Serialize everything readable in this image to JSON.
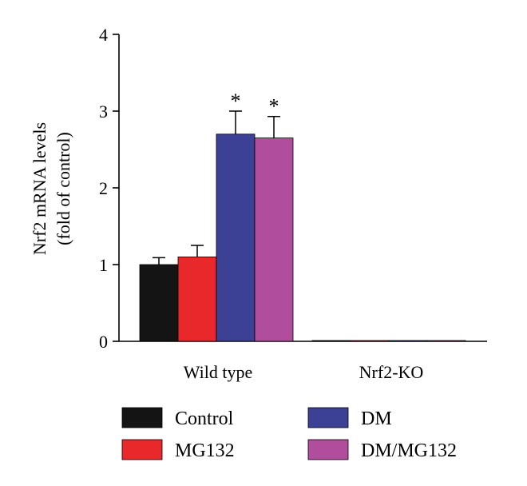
{
  "chart_data": {
    "type": "bar",
    "categories": [
      "Wild type",
      "Nrf2-KO"
    ],
    "ylabel_line1": "Nrf2 mRNA levels",
    "ylabel_line2": "(fold of control)",
    "ylim": [
      0,
      4
    ],
    "yticks": [
      "0",
      "1",
      "2",
      "3",
      "4"
    ],
    "grid": false,
    "legend_position": "bottom",
    "significance_marker": "*",
    "series": [
      {
        "name": "Control",
        "color": "#141414",
        "values": [
          1.0,
          0.01
        ],
        "errors": [
          0.09,
          0.0
        ],
        "significant": [
          false,
          false
        ]
      },
      {
        "name": "MG132",
        "color": "#e8282a",
        "values": [
          1.1,
          0.01
        ],
        "errors": [
          0.15,
          0.0
        ],
        "significant": [
          false,
          false
        ]
      },
      {
        "name": "DM",
        "color": "#3c4196",
        "values": [
          2.7,
          0.01
        ],
        "errors": [
          0.3,
          0.0
        ],
        "significant": [
          true,
          false
        ]
      },
      {
        "name": "DM/MG132",
        "color": "#b04d9c",
        "values": [
          2.65,
          0.01
        ],
        "errors": [
          0.28,
          0.0
        ],
        "significant": [
          true,
          false
        ]
      }
    ]
  }
}
